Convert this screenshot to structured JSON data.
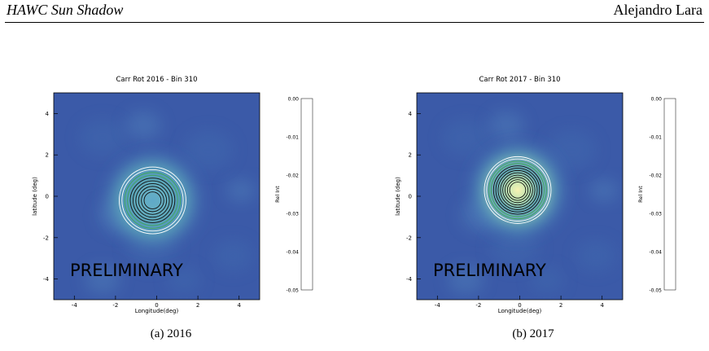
{
  "header": {
    "left": "HAWC Sun Shadow",
    "right": "Alejandro Lara"
  },
  "figures": [
    {
      "caption": "(a) 2016",
      "chart_data": {
        "type": "heatmap",
        "title": "Carr Rot 2016 -  Bin  310",
        "xlabel": "Longitude(deg)",
        "ylabel": "latitude (deg)",
        "xlim": [
          -5,
          5
        ],
        "ylim": [
          -5,
          5
        ],
        "xticks": [
          "-4",
          "-2",
          "0",
          "2",
          "4"
        ],
        "yticks": [
          "4",
          "2",
          "0",
          "-2",
          "-4"
        ],
        "colorbar_label": "Rel Int",
        "colorbar_ticks": [
          "0.00",
          "-0.01",
          "-0.02",
          "-0.03",
          "-0.04",
          "-0.05"
        ],
        "colorbar_range": [
          -0.05,
          0.0
        ],
        "watermark": "PRELIMINARY",
        "shadow_center": [
          -0.2,
          -0.2
        ],
        "contour_levels": 10
      }
    },
    {
      "caption": "(b) 2017",
      "chart_data": {
        "type": "heatmap",
        "title": "Carr Rot 2017 -  Bin  310",
        "xlabel": "Longitude(deg)",
        "ylabel": "latitude (deg)",
        "xlim": [
          -5,
          5
        ],
        "ylim": [
          -5,
          5
        ],
        "xticks": [
          "-4",
          "-2",
          "0",
          "2",
          "4"
        ],
        "yticks": [
          "4",
          "2",
          "0",
          "-2",
          "-4"
        ],
        "colorbar_label": "Rel Int",
        "colorbar_ticks": [
          "0.00",
          "-0.01",
          "-0.02",
          "-0.03",
          "-0.04",
          "-0.05"
        ],
        "colorbar_range": [
          -0.05,
          0.0
        ],
        "watermark": "PRELIMINARY",
        "shadow_center": [
          -0.1,
          0.3
        ],
        "contour_levels": 12
      }
    }
  ],
  "colors": {
    "background": "#3b5aa8",
    "halo": "#5aa7c8",
    "core": "#fbf3b2"
  }
}
